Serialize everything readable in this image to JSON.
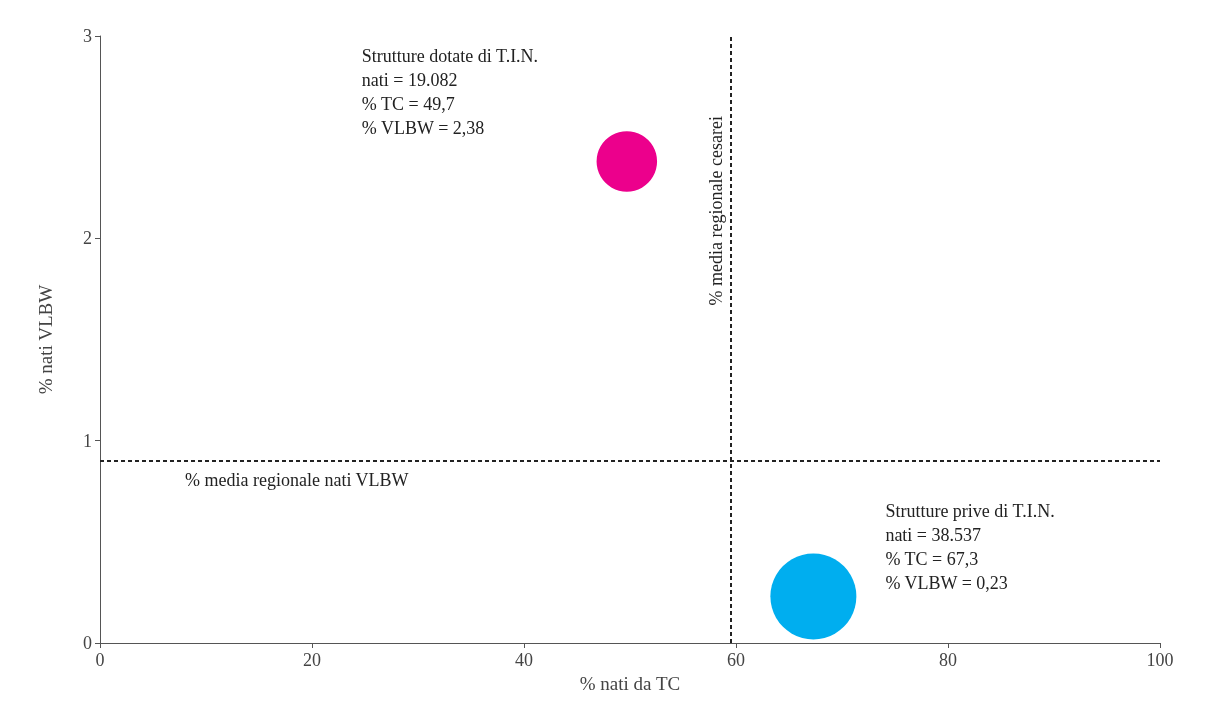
{
  "chart_data": {
    "type": "bubble",
    "xlabel": "% nati da TC",
    "ylabel": "% nati VLBW",
    "xlim": [
      0,
      100
    ],
    "xticks": [
      0,
      20,
      40,
      60,
      80,
      100
    ],
    "ylim": [
      0,
      3
    ],
    "yticks": [
      0,
      1,
      2,
      3
    ],
    "grid": false,
    "series": [
      {
        "color": "#ec008c",
        "x": [
          49.7
        ],
        "values": [
          2.38
        ],
        "sizes": [
          0.495
        ]
      },
      {
        "color": "#00aeef",
        "x": [
          67.3
        ],
        "values": [
          0.23
        ],
        "sizes": [
          1
        ]
      }
    ],
    "annotations": [
      "Strutture dotate di T.I.N.\nnati = 19.082\n% TC = 49,7\n% VLBW = 2,38",
      "Strutture prive di T.I.N.\nnati = 38.537\n% TC = 67,3\n% VLBW = 0,23"
    ],
    "ref_lines": [
      {
        "axis": "x",
        "value": 59.5,
        "label": "% media regionale cesarei",
        "color": "#222222",
        "line_style": "dashed"
      },
      {
        "axis": "y",
        "value": 0.9,
        "label": "% media regionale nati VLBW",
        "color": "#222222",
        "line_style": "dashed"
      }
    ]
  }
}
